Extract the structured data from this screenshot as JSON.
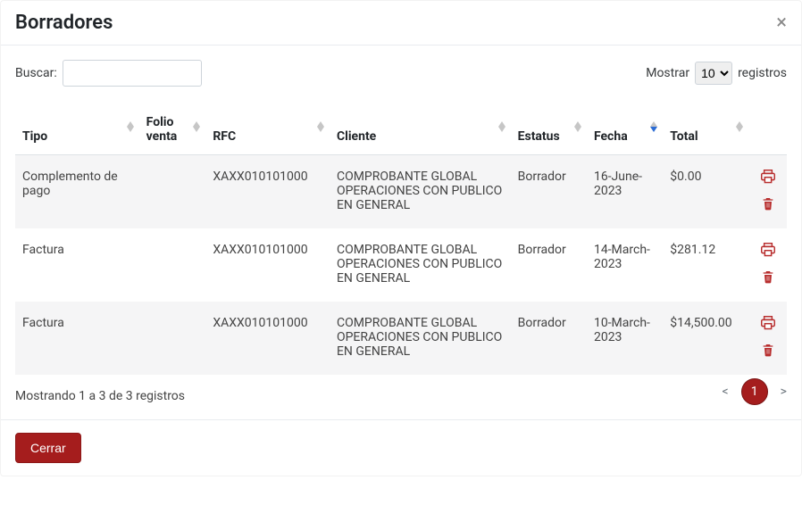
{
  "modal": {
    "title": "Borradores",
    "close_btn_label": "Cerrar"
  },
  "toolbar": {
    "search_label": "Buscar:",
    "search_value": "",
    "show_label": "Mostrar",
    "records_label": "registros",
    "page_length": "10"
  },
  "columns": {
    "tipo": "Tipo",
    "folio": "Folio venta",
    "rfc": "RFC",
    "cliente": "Cliente",
    "estatus": "Estatus",
    "fecha": "Fecha",
    "total": "Total"
  },
  "rows": [
    {
      "tipo": "Complemento de pago",
      "folio": "",
      "rfc": "XAXX010101000",
      "cliente": "COMPROBANTE GLOBAL OPERACIONES CON PUBLICO EN GENERAL",
      "estatus": "Borrador",
      "fecha": "16-June-2023",
      "total": "$0.00"
    },
    {
      "tipo": "Factura",
      "folio": "",
      "rfc": "XAXX010101000",
      "cliente": "COMPROBANTE GLOBAL OPERACIONES CON PUBLICO EN GENERAL",
      "estatus": "Borrador",
      "fecha": "14-March-2023",
      "total": "$281.12"
    },
    {
      "tipo": "Factura",
      "folio": "",
      "rfc": "XAXX010101000",
      "cliente": "COMPROBANTE GLOBAL OPERACIONES CON PUBLICO EN GENERAL",
      "estatus": "Borrador",
      "fecha": "10-March-2023",
      "total": "$14,500.00"
    }
  ],
  "info_text": "Mostrando 1 a 3 de 3 registros",
  "pagination": {
    "prev": "<",
    "next": ">",
    "current": "1"
  },
  "colors": {
    "accent": "#a51d1d",
    "icon_red": "#b82e2e",
    "sort_active": "#2b6cd4"
  },
  "icons": {
    "print": "print-icon",
    "trash": "trash-icon",
    "close": "close-icon"
  }
}
